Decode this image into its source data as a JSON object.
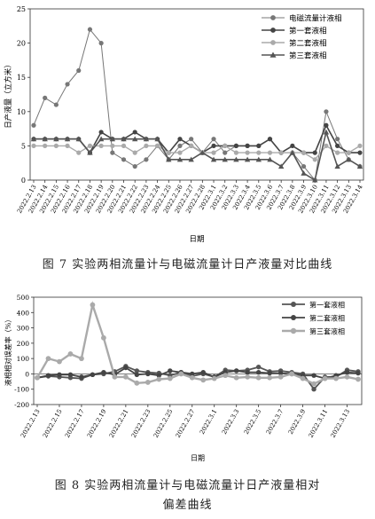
{
  "chart_data": [
    {
      "type": "line",
      "title": "",
      "ylabel": "日产液量（立方米）",
      "xlabel": "日期",
      "ylim": [
        0,
        25
      ],
      "yticks": [
        0,
        5,
        10,
        15,
        20,
        25
      ],
      "legend": "top-right",
      "grid": false,
      "categories": [
        "2022.2.13",
        "2022.2.14",
        "2022.2.15",
        "2022.2.16",
        "2022.2.17",
        "2022.2.18",
        "2022.2.19",
        "2022.2.20",
        "2022.2.21",
        "2022.2.22",
        "2022.2.23",
        "2022.2.24",
        "2022.2.25",
        "2022.2.26",
        "2022.2.27",
        "2022.2.28",
        "2022.3.1",
        "2022.3.2",
        "2022.3.3",
        "2022.3.4",
        "2022.3.5",
        "2022.3.6",
        "2022.3.7",
        "2022.3.8",
        "2022.3.9",
        "2022.3.10",
        "2022.3.11",
        "2022.3.12",
        "2022.3.13",
        "2022.3.14"
      ],
      "xtick_labels": [
        "2022.2.13",
        "2022.2.14",
        "2022.2.15",
        "2022.2.16",
        "2022.2.17",
        "2022.2.18",
        "2022.2.19",
        "2022.2.20",
        "2022.2.21",
        "2022.2.22",
        "2022.2.23",
        "2022.2.24",
        "2022.2.25",
        "2022.2.26",
        "2022.2.27",
        "2022.2.28",
        "2022.3.1",
        "2022.3.2",
        "2022.3.3",
        "2022.3.4",
        "2022.3.5",
        "2022.3.6",
        "2022.3.7",
        "2022.3.8",
        "2022.3.9",
        "2022.3.10",
        "2022.3.11",
        "2022.3.12",
        "2022.3.13",
        "2022.3.14"
      ],
      "series": [
        {
          "name": "电磁流量计液相",
          "color": "#777777",
          "values": [
            8,
            12,
            11,
            14,
            16,
            22,
            20,
            4,
            3,
            2,
            3,
            5,
            3,
            5,
            6,
            4,
            6,
            4,
            5,
            5,
            5,
            6,
            4,
            4,
            2,
            0,
            10,
            6,
            3,
            2
          ]
        },
        {
          "name": "第一套液相",
          "color": "#444444",
          "values": [
            6,
            6,
            6,
            6,
            6,
            4,
            7,
            6,
            6,
            7,
            6,
            6,
            4,
            6,
            5,
            4,
            5,
            5,
            5,
            5,
            5,
            6,
            4,
            5,
            4,
            4,
            8,
            5,
            4,
            4
          ]
        },
        {
          "name": "第二套液相",
          "color": "#aaaaaa",
          "values": [
            5,
            5,
            5,
            5,
            4,
            5,
            5,
            5,
            5,
            4,
            5,
            5,
            4,
            4,
            5,
            4,
            4,
            5,
            4,
            4,
            4,
            4,
            4,
            4,
            4,
            3,
            5,
            4,
            4,
            5
          ]
        },
        {
          "name": "第三套液相",
          "color": "#555555",
          "values": [
            6,
            6,
            6,
            6,
            6,
            4,
            6,
            6,
            6,
            6,
            6,
            6,
            3,
            3,
            3,
            4,
            3,
            3,
            3,
            3,
            3,
            3,
            2,
            4,
            1,
            0,
            7,
            2,
            3,
            2
          ]
        }
      ]
    },
    {
      "type": "line",
      "title": "",
      "ylabel": "液相相对误差率（%）",
      "xlabel": "日期",
      "ylim": [
        -200,
        500
      ],
      "yticks": [
        -200,
        -100,
        0,
        100,
        200,
        300,
        400,
        500
      ],
      "legend": "top-right",
      "grid": false,
      "categories": [
        "2022.2.13",
        "2022.2.14",
        "2022.2.15",
        "2022.2.16",
        "2022.2.17",
        "2022.2.18",
        "2022.2.19",
        "2022.2.20",
        "2022.2.21",
        "2022.2.22",
        "2022.2.23",
        "2022.2.24",
        "2022.2.25",
        "2022.2.26",
        "2022.2.27",
        "2022.2.28",
        "2022.3.1",
        "2022.3.2",
        "2022.3.3",
        "2022.3.4",
        "2022.3.5",
        "2022.3.6",
        "2022.3.7",
        "2022.3.8",
        "2022.3.9",
        "2022.3.10",
        "2022.3.11",
        "2022.3.12",
        "2022.3.13",
        "2022.3.14"
      ],
      "xtick_labels": [
        "2022.2.13",
        "2022.2.15",
        "2022.2.17",
        "2022.2.19",
        "2022.2.21",
        "2022.2.23",
        "2022.2.25",
        "2022.2.27",
        "2022.3.1",
        "2022.3.3",
        "2022.3.5",
        "2022.3.7",
        "2022.3.9",
        "2022.3.11",
        "2022.3.13"
      ],
      "series": [
        {
          "name": "第一套液相",
          "color": "#555555",
          "values": [
            -25,
            -15,
            -20,
            -25,
            -30,
            -5,
            0,
            15,
            50,
            20,
            10,
            5,
            -10,
            10,
            -15,
            0,
            -20,
            25,
            20,
            25,
            45,
            15,
            20,
            10,
            0,
            -100,
            -20,
            -20,
            25,
            15
          ]
        },
        {
          "name": "第二套液相",
          "color": "#444444",
          "values": [
            -25,
            -10,
            -5,
            -5,
            -20,
            -5,
            10,
            -5,
            40,
            -5,
            0,
            -10,
            20,
            10,
            0,
            10,
            -20,
            10,
            20,
            10,
            10,
            5,
            5,
            0,
            -10,
            -10,
            -30,
            -10,
            10,
            5
          ]
        },
        {
          "name": "第三套液相",
          "color": "#aaaaaa",
          "values": [
            -25,
            100,
            80,
            130,
            100,
            450,
            235,
            -20,
            -20,
            -60,
            -55,
            -35,
            -30,
            0,
            -25,
            -40,
            -30,
            -10,
            -25,
            -20,
            -25,
            -25,
            -20,
            0,
            -30,
            -65,
            -30,
            -30,
            -20,
            -35
          ]
        }
      ]
    }
  ],
  "captions": {
    "fig7": "图 7   实验两相流量计与电磁流量计日产液量对比曲线",
    "fig8_line1": "图 8   实验两相流量计与电磁流量计日产液量相对",
    "fig8_line2": "偏差曲线"
  }
}
